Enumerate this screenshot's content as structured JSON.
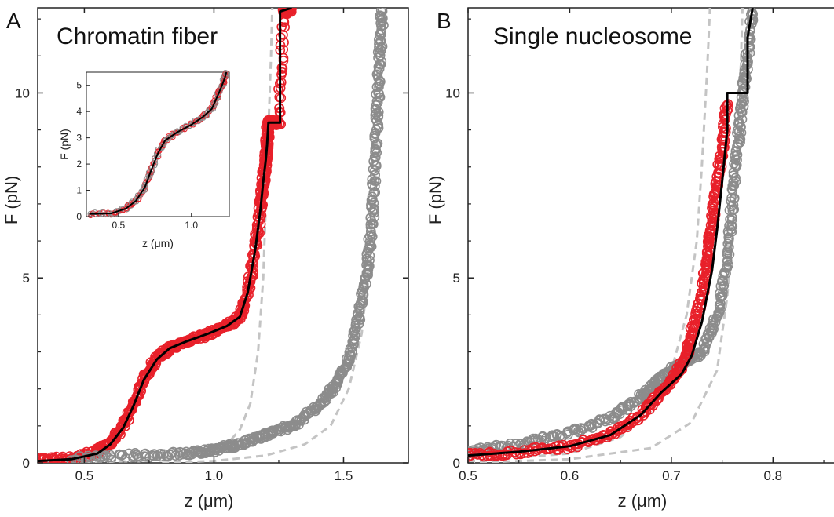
{
  "chart_data": [
    {
      "panel": "A",
      "type": "scatter",
      "title": "Chromatin fiber",
      "xlabel": "z (μm)",
      "ylabel": "F (pN)",
      "xlim": [
        0.32,
        1.75
      ],
      "ylim": [
        0,
        12.3
      ],
      "xticks": [
        0.5,
        1.0,
        1.5
      ],
      "xtick_labels": [
        "0.5",
        "1.0",
        "1.5"
      ],
      "yticks": [
        0,
        5,
        10
      ],
      "ytick_labels": [
        "0",
        "5",
        "10"
      ],
      "series": [
        {
          "color": "#e8202a",
          "style": "open-circles",
          "x": [
            0.32,
            0.45,
            0.55,
            0.6,
            0.65,
            0.69,
            0.73,
            0.78,
            0.83,
            0.9,
            0.98,
            1.05,
            1.1,
            1.13,
            1.16,
            1.18,
            1.19,
            1.2,
            1.205,
            1.21,
            1.22,
            1.25,
            1.27,
            1.28,
            1.3
          ],
          "y": [
            0.1,
            0.12,
            0.3,
            0.55,
            1.0,
            1.6,
            2.3,
            2.85,
            3.1,
            3.3,
            3.5,
            3.7,
            3.95,
            4.6,
            5.8,
            6.9,
            7.6,
            8.2,
            8.6,
            9.2,
            9.2,
            9.2,
            12.2,
            12.2,
            12.3
          ]
        },
        {
          "color": "#8c8c8c",
          "style": "open-circles",
          "x": [
            0.45,
            0.7,
            0.9,
            1.0,
            1.1,
            1.2,
            1.3,
            1.4,
            1.47,
            1.52,
            1.56,
            1.59,
            1.61,
            1.62,
            1.63,
            1.64,
            1.65
          ],
          "y": [
            0.1,
            0.2,
            0.25,
            0.35,
            0.5,
            0.75,
            1.0,
            1.5,
            2.1,
            2.8,
            4.0,
            5.2,
            6.5,
            8.0,
            9.5,
            11.0,
            12.3
          ]
        }
      ],
      "fit_line": {
        "color": "#000000",
        "x": [
          0.32,
          0.45,
          0.55,
          0.6,
          0.65,
          0.69,
          0.73,
          0.78,
          0.83,
          0.9,
          0.98,
          1.05,
          1.1,
          1.13,
          1.16,
          1.18,
          1.19,
          1.2,
          1.205,
          1.21,
          1.22,
          1.225,
          1.225,
          1.25,
          1.255,
          1.255,
          1.3
        ],
        "y": [
          0.05,
          0.1,
          0.25,
          0.5,
          0.95,
          1.55,
          2.25,
          2.8,
          3.1,
          3.3,
          3.5,
          3.7,
          3.95,
          4.6,
          5.8,
          6.9,
          7.6,
          8.2,
          8.6,
          9.2,
          9.2,
          9.2,
          9.2,
          9.2,
          9.2,
          12.2,
          12.3
        ]
      },
      "dashed_guides": [
        {
          "color": "#c4c4c4",
          "x": [
            0.45,
            0.7,
            0.9,
            1.0,
            1.05,
            1.1,
            1.14,
            1.17,
            1.19,
            1.2,
            1.21,
            1.22,
            1.225
          ],
          "y": [
            0.0,
            0.05,
            0.15,
            0.3,
            0.5,
            0.9,
            1.6,
            3.0,
            5.0,
            7.0,
            9.0,
            11.0,
            12.3
          ]
        },
        {
          "color": "#c4c4c4",
          "x": [
            0.8,
            1.0,
            1.2,
            1.35,
            1.45,
            1.52,
            1.57,
            1.6,
            1.62,
            1.635,
            1.645,
            1.65
          ],
          "y": [
            0.0,
            0.05,
            0.2,
            0.5,
            1.0,
            2.0,
            3.5,
            5.5,
            7.5,
            9.5,
            11.0,
            12.3
          ]
        }
      ],
      "inset": {
        "type": "scatter",
        "xlabel": "z (μm)",
        "ylabel": "F (pN)",
        "xlim": [
          0.28,
          1.26
        ],
        "ylim": [
          0,
          5.5
        ],
        "xticks": [
          0.5,
          1.0
        ],
        "xtick_labels": [
          "0.5",
          "1.0"
        ],
        "yticks": [
          0,
          1,
          2,
          3,
          4,
          5
        ],
        "ytick_labels": [
          "0",
          "1",
          "2",
          "3",
          "4",
          "5"
        ],
        "x": [
          0.3,
          0.45,
          0.55,
          0.62,
          0.68,
          0.72,
          0.77,
          0.82,
          0.9,
          1.0,
          1.08,
          1.14,
          1.18,
          1.21,
          1.23,
          1.24
        ],
        "y": [
          0.1,
          0.12,
          0.3,
          0.6,
          1.1,
          1.7,
          2.4,
          2.9,
          3.2,
          3.5,
          3.8,
          4.1,
          4.6,
          5.0,
          5.3,
          5.5
        ]
      }
    },
    {
      "panel": "B",
      "type": "scatter",
      "title": "Single nucleosome",
      "xlabel": "z (μm)",
      "ylabel": "F (pN)",
      "xlim": [
        0.5,
        0.86
      ],
      "ylim": [
        0,
        12.3
      ],
      "xticks": [
        0.5,
        0.6,
        0.7,
        0.8
      ],
      "xtick_labels": [
        "0.5",
        "0.6",
        "0.7",
        "0.8"
      ],
      "yticks": [
        0,
        5,
        10
      ],
      "ytick_labels": [
        "0",
        "5",
        "10"
      ],
      "series": [
        {
          "color": "#8c8c8c",
          "style": "open-circles",
          "x": [
            0.5,
            0.55,
            0.6,
            0.64,
            0.67,
            0.69,
            0.71,
            0.73,
            0.745,
            0.755,
            0.76,
            0.765,
            0.77,
            0.775,
            0.78
          ],
          "y": [
            0.3,
            0.5,
            0.8,
            1.2,
            1.8,
            2.3,
            2.7,
            3.0,
            4.0,
            5.5,
            7.0,
            8.5,
            9.8,
            11.0,
            12.3
          ]
        },
        {
          "color": "#e8202a",
          "style": "open-circles",
          "x": [
            0.5,
            0.55,
            0.6,
            0.64,
            0.67,
            0.69,
            0.705,
            0.715,
            0.72,
            0.73,
            0.735,
            0.74,
            0.745,
            0.75,
            0.755
          ],
          "y": [
            0.2,
            0.3,
            0.45,
            0.75,
            1.3,
            1.9,
            2.4,
            2.9,
            3.5,
            4.5,
            5.5,
            6.5,
            7.5,
            8.5,
            9.8
          ]
        }
      ],
      "fit_line": {
        "color": "#000000",
        "x": [
          0.5,
          0.55,
          0.6,
          0.64,
          0.67,
          0.69,
          0.7,
          0.71,
          0.72,
          0.73,
          0.74,
          0.745,
          0.75,
          0.755,
          0.755,
          0.775,
          0.775,
          0.78
        ],
        "y": [
          0.2,
          0.3,
          0.45,
          0.75,
          1.3,
          1.9,
          2.15,
          2.4,
          2.9,
          3.8,
          5.2,
          6.3,
          7.6,
          9.0,
          10.0,
          10.0,
          11.5,
          12.3
        ]
      },
      "dashed_guides": [
        {
          "color": "#c4c4c4",
          "x": [
            0.5,
            0.6,
            0.65,
            0.68,
            0.7,
            0.715,
            0.725,
            0.73,
            0.735,
            0.738
          ],
          "y": [
            0.05,
            0.25,
            0.7,
            1.4,
            2.5,
            4.0,
            6.0,
            8.0,
            10.5,
            12.3
          ]
        },
        {
          "color": "#c4c4c4",
          "x": [
            0.5,
            0.6,
            0.68,
            0.72,
            0.745,
            0.755,
            0.762,
            0.767,
            0.77
          ],
          "y": [
            0.0,
            0.1,
            0.4,
            1.1,
            2.5,
            4.5,
            7.0,
            9.5,
            12.3
          ]
        }
      ]
    }
  ]
}
